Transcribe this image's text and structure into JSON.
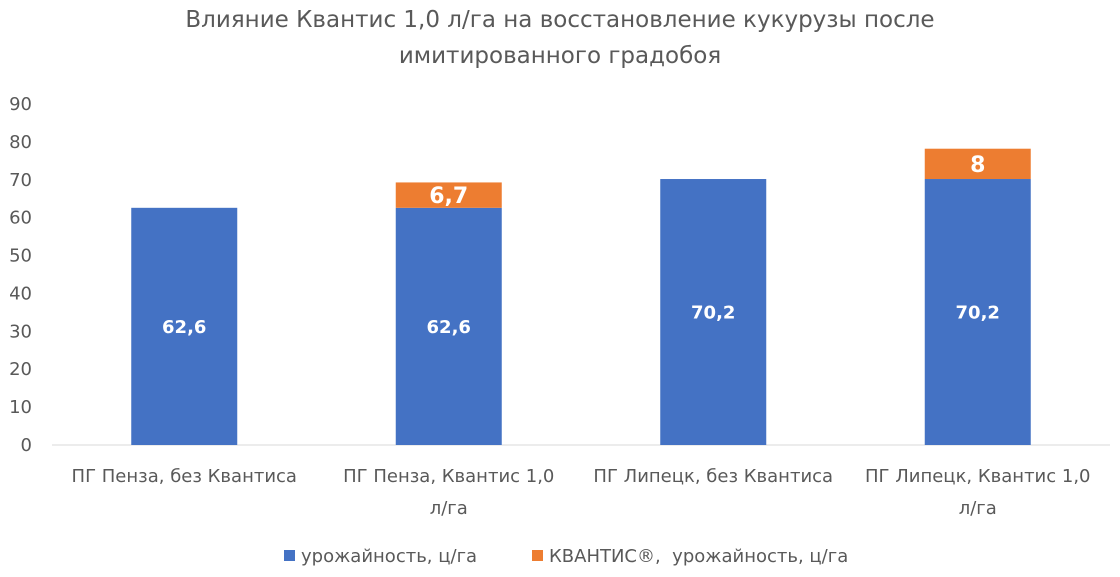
{
  "chart_data": {
    "type": "bar",
    "stacked": true,
    "title_lines": [
      "Влияние Квантис 1,0 л/га на восстановление кукурузы после",
      "имитированного градобоя"
    ],
    "categories": [
      [
        "ПГ Пенза, без Квантиса"
      ],
      [
        "ПГ Пенза, Квантис 1,0",
        "л/га"
      ],
      [
        "ПГ Липецк, без Квантиса"
      ],
      [
        "ПГ Липецк, Квантис 1,0",
        "л/га"
      ]
    ],
    "series": [
      {
        "name": "урожайность, ц/га",
        "color": "#4472C4",
        "values": [
          62.6,
          62.6,
          70.2,
          70.2
        ],
        "labels": [
          "62,6",
          "62,6",
          "70,2",
          "70,2"
        ]
      },
      {
        "name": "КВАНТИС®,  урожайность, ц/га",
        "color": "#ED7D31",
        "values": [
          0,
          6.7,
          0,
          8
        ],
        "labels": [
          "",
          "6,7",
          "",
          "8"
        ]
      }
    ],
    "ylim": [
      0,
      90
    ],
    "yticks": [
      "0",
      "10",
      "20",
      "30",
      "40",
      "50",
      "60",
      "70",
      "80",
      "90"
    ],
    "grid": false,
    "legend_position": "bottom"
  }
}
